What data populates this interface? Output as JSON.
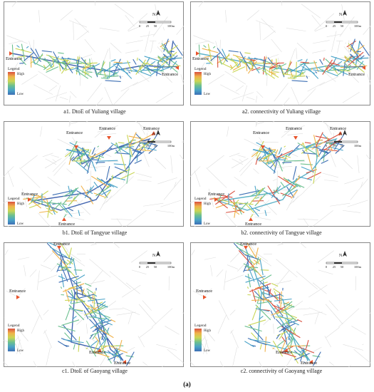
{
  "panels": [
    {
      "caption": "a1. DtoE of Yuliang village",
      "entrances": [
        "Entrance",
        "Entrance"
      ],
      "legend": {
        "title": "Legend",
        "high": "High",
        "low": "Low"
      },
      "scale": [
        "0",
        "25",
        "50",
        "100m"
      ],
      "north": "N"
    },
    {
      "caption": "a2. connectivity of Yuliang village",
      "entrances": [
        "Entrance",
        "Entrance"
      ],
      "legend": {
        "title": "Legend",
        "high": "High",
        "low": "Low"
      },
      "scale": [
        "0",
        "25",
        "50",
        "100m"
      ],
      "north": "N"
    },
    {
      "caption": "b1. DtoE of Tangyue village",
      "entrances": [
        "Entrance",
        "Entrance",
        "Entrance",
        "Entrance",
        "Entrance"
      ],
      "legend": {
        "title": "Legend",
        "high": "High",
        "low": "Low"
      },
      "scale": [
        "0",
        "25",
        "50",
        "100m"
      ],
      "north": "N"
    },
    {
      "caption": "b2. connectivity of Tangyue village",
      "entrances": [
        "Entrance",
        "Entrance",
        "Entrance",
        "Entrance",
        "Entrance"
      ],
      "legend": {
        "title": "Legend",
        "high": "High",
        "low": "Low"
      },
      "scale": [
        "0",
        "25",
        "50",
        "100m"
      ],
      "north": "N"
    },
    {
      "caption": "c1. DtoE of Gaoyang village",
      "entrances": [
        "Entrance",
        "Entrance",
        "Entrance",
        "Entrance"
      ],
      "legend": {
        "title": "Legend",
        "high": "High",
        "low": "Low"
      },
      "scale": [
        "0",
        "25",
        "50",
        "100m"
      ],
      "north": "N"
    },
    {
      "caption": "c2. connectivity of Gaoyang village",
      "entrances": [
        "Entrance",
        "Entrance",
        "Entrance",
        "Entrance"
      ],
      "legend": {
        "title": "Legend",
        "high": "High",
        "low": "Low"
      },
      "scale": [
        "0",
        "25",
        "50",
        "100m"
      ],
      "north": "N"
    }
  ],
  "figure_label": "(a)"
}
